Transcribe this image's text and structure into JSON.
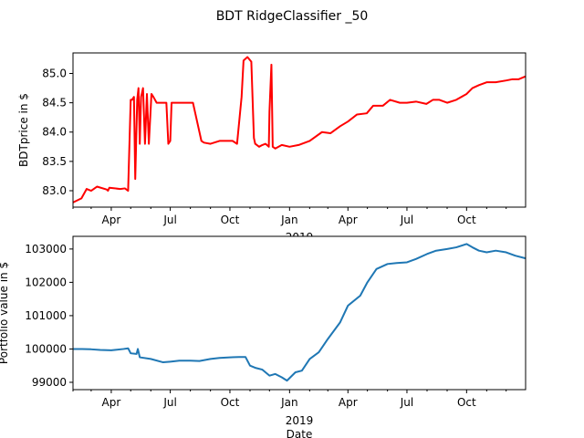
{
  "figure": {
    "title": "BDT RidgeClassifier _50"
  },
  "chart_data": [
    {
      "type": "line",
      "ylabel": "BDTprice in $",
      "xlabel": "",
      "x_tick_labels": [
        "Apr",
        "Jul",
        "Oct",
        "Jan",
        "Apr",
        "Jul",
        "Oct"
      ],
      "x_year_label": "2019",
      "y_ticks": [
        83.0,
        83.5,
        84.0,
        84.5,
        85.0
      ],
      "y_tick_labels": [
        "83.0",
        "83.5",
        "84.0",
        "84.5",
        "85.0"
      ],
      "xlim": [
        "2018-02-01",
        "2019-12-31"
      ],
      "ylim": [
        82.72,
        85.35
      ],
      "color": "#ff0000",
      "series": [
        {
          "x": [
            "2018-02-01",
            "2018-02-14",
            "2018-02-22",
            "2018-03-01",
            "2018-03-10",
            "2018-03-25",
            "2018-03-27",
            "2018-03-29",
            "2018-04-15",
            "2018-04-22",
            "2018-04-27",
            "2018-05-01",
            "2018-05-03",
            "2018-05-06",
            "2018-05-08",
            "2018-05-11",
            "2018-05-13",
            "2018-05-15",
            "2018-05-17",
            "2018-05-20",
            "2018-05-23",
            "2018-05-26",
            "2018-05-29",
            "2018-06-02",
            "2018-06-05",
            "2018-06-10",
            "2018-06-20",
            "2018-06-25",
            "2018-06-28",
            "2018-07-01",
            "2018-07-03",
            "2018-07-08",
            "2018-07-20",
            "2018-08-05",
            "2018-08-18",
            "2018-08-22",
            "2018-09-01",
            "2018-09-15",
            "2018-09-25",
            "2018-10-05",
            "2018-10-12",
            "2018-10-19",
            "2018-10-22",
            "2018-10-28",
            "2018-11-03",
            "2018-11-07",
            "2018-11-09",
            "2018-11-15",
            "2018-11-20",
            "2018-11-25",
            "2018-11-30",
            "2018-12-01",
            "2018-12-04",
            "2018-12-06",
            "2018-12-10",
            "2018-12-20",
            "2019-01-01",
            "2019-01-15",
            "2019-02-01",
            "2019-02-20",
            "2019-03-05",
            "2019-03-20",
            "2019-04-01",
            "2019-04-15",
            "2019-04-30",
            "2019-05-10",
            "2019-05-25",
            "2019-06-05",
            "2019-06-20",
            "2019-07-01",
            "2019-07-15",
            "2019-07-31",
            "2019-08-10",
            "2019-08-20",
            "2019-09-01",
            "2019-09-15",
            "2019-10-01",
            "2019-10-10",
            "2019-10-20",
            "2019-11-01",
            "2019-11-15",
            "2019-12-01",
            "2019-12-10",
            "2019-12-20",
            "2019-12-31"
          ],
          "y": [
            82.8,
            82.87,
            83.03,
            83.0,
            83.07,
            83.02,
            83.0,
            83.05,
            83.03,
            83.04,
            83.0,
            84.55,
            84.55,
            84.6,
            83.2,
            84.55,
            84.75,
            83.8,
            84.6,
            84.75,
            83.8,
            84.65,
            83.8,
            84.65,
            84.6,
            84.5,
            84.5,
            84.5,
            83.8,
            83.85,
            84.5,
            84.5,
            84.5,
            84.5,
            83.85,
            83.82,
            83.8,
            83.85,
            83.85,
            83.85,
            83.8,
            84.6,
            85.22,
            85.28,
            85.2,
            83.9,
            83.8,
            83.75,
            83.78,
            83.8,
            83.75,
            84.35,
            85.15,
            83.75,
            83.72,
            83.78,
            83.75,
            83.78,
            83.85,
            84.0,
            83.98,
            84.1,
            84.18,
            84.3,
            84.32,
            84.45,
            84.45,
            84.55,
            84.5,
            84.5,
            84.52,
            84.48,
            84.55,
            84.55,
            84.5,
            84.55,
            84.65,
            84.75,
            84.8,
            84.85,
            84.85,
            84.88,
            84.9,
            84.9,
            84.95
          ]
        }
      ]
    },
    {
      "type": "line",
      "ylabel": "Portfolio value in $",
      "xlabel": "Date",
      "x_tick_labels": [
        "Apr",
        "Jul",
        "Oct",
        "Jan",
        "Apr",
        "Jul",
        "Oct"
      ],
      "x_year_label": "2019",
      "y_ticks": [
        99000,
        100000,
        101000,
        102000,
        103000
      ],
      "y_tick_labels": [
        "99000",
        "100000",
        "101000",
        "102000",
        "103000"
      ],
      "xlim": [
        "2018-02-01",
        "2019-12-31"
      ],
      "ylim": [
        98780,
        103380
      ],
      "color": "#1f77b4",
      "series": [
        {
          "x": [
            "2018-02-01",
            "2018-02-15",
            "2018-03-01",
            "2018-03-15",
            "2018-04-01",
            "2018-04-20",
            "2018-04-27",
            "2018-05-01",
            "2018-05-10",
            "2018-05-12",
            "2018-05-15",
            "2018-06-01",
            "2018-06-20",
            "2018-07-01",
            "2018-07-15",
            "2018-08-01",
            "2018-08-15",
            "2018-09-01",
            "2018-09-15",
            "2018-10-01",
            "2018-10-15",
            "2018-10-25",
            "2018-11-01",
            "2018-11-10",
            "2018-11-20",
            "2018-12-01",
            "2018-12-10",
            "2018-12-20",
            "2018-12-28",
            "2019-01-10",
            "2019-01-20",
            "2019-02-01",
            "2019-02-15",
            "2019-03-01",
            "2019-03-20",
            "2019-04-01",
            "2019-04-20",
            "2019-05-01",
            "2019-05-15",
            "2019-06-01",
            "2019-06-15",
            "2019-07-01",
            "2019-07-15",
            "2019-08-01",
            "2019-08-15",
            "2019-09-01",
            "2019-09-15",
            "2019-10-01",
            "2019-10-10",
            "2019-10-20",
            "2019-11-01",
            "2019-11-15",
            "2019-12-01",
            "2019-12-15",
            "2019-12-31"
          ],
          "y": [
            100000,
            100000,
            99990,
            99970,
            99960,
            100000,
            100020,
            99870,
            99850,
            100000,
            99750,
            99700,
            99600,
            99620,
            99650,
            99650,
            99640,
            99700,
            99730,
            99750,
            99760,
            99760,
            99500,
            99430,
            99380,
            99200,
            99250,
            99150,
            99050,
            99300,
            99350,
            99700,
            99900,
            100300,
            100800,
            101300,
            101600,
            102000,
            102400,
            102550,
            102580,
            102600,
            102700,
            102850,
            102950,
            103000,
            103050,
            103150,
            103050,
            102950,
            102900,
            102950,
            102900,
            102800,
            102720
          ]
        }
      ]
    }
  ]
}
